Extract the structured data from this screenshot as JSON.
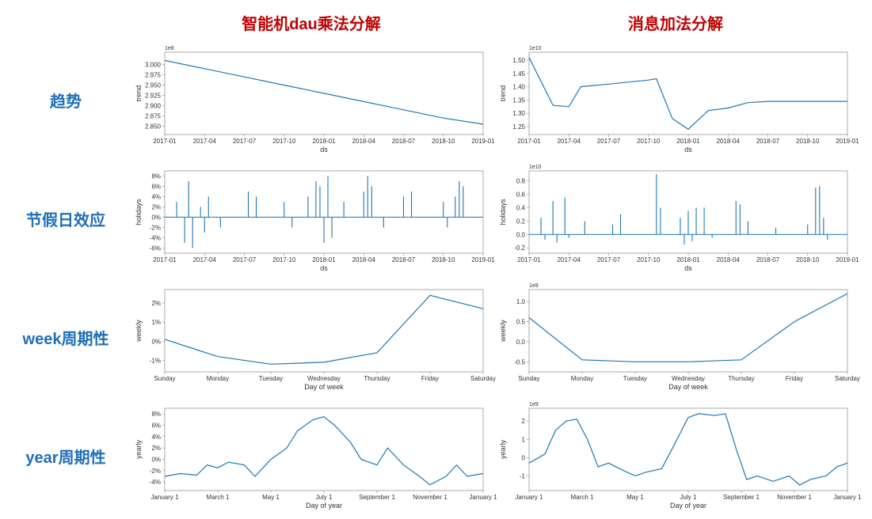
{
  "columns": {
    "left_title": "智能机dau乘法分解",
    "right_title": "消息加法分解"
  },
  "rows": {
    "r1": "趋势",
    "r2": "节假日效应",
    "r3": "week周期性",
    "r4": "year周期性"
  },
  "colors": {
    "line": "#1f77b4",
    "frame": "#888888",
    "title": "#c00000",
    "row_label": "#1f6fb8",
    "bg": "#ffffff"
  },
  "shared_dates": {
    "ticks": [
      "2017-01",
      "2017-04",
      "2017-07",
      "2017-10",
      "2018-01",
      "2018-04",
      "2018-07",
      "2018-10",
      "2019-01"
    ],
    "xlabel": "ds"
  },
  "weekly_axis": {
    "ticks": [
      "Sunday",
      "Monday",
      "Tuesday",
      "Wednesday",
      "Thursday",
      "Friday",
      "Saturday"
    ],
    "xlabel": "Day of week"
  },
  "yearly_axis": {
    "ticks": [
      "January 1",
      "March 1",
      "May 1",
      "July 1",
      "September 1",
      "November 1",
      "January 1"
    ],
    "xlabel": "Day of year"
  },
  "charts": {
    "trend_left": {
      "type": "line",
      "exp": "1e8",
      "ylabel": "trend",
      "yticks": [
        "2.850",
        "2.875",
        "2.900",
        "2.925",
        "2.950",
        "2.975",
        "3.000"
      ],
      "ylim": [
        2.83,
        3.03
      ],
      "data": [
        [
          0,
          3.01
        ],
        [
          1,
          2.99
        ],
        [
          2,
          2.97
        ],
        [
          3,
          2.95
        ],
        [
          4,
          2.93
        ],
        [
          5,
          2.91
        ],
        [
          6,
          2.89
        ],
        [
          7,
          2.87
        ],
        [
          8,
          2.855
        ]
      ]
    },
    "trend_right": {
      "type": "line",
      "exp": "1e10",
      "ylabel": "trend",
      "yticks": [
        "1.25",
        "1.30",
        "1.35",
        "1.40",
        "1.45",
        "1.50"
      ],
      "ylim": [
        1.22,
        1.53
      ],
      "data": [
        [
          0,
          1.51
        ],
        [
          0.6,
          1.33
        ],
        [
          1,
          1.325
        ],
        [
          1.3,
          1.4
        ],
        [
          2,
          1.41
        ],
        [
          3,
          1.425
        ],
        [
          3.2,
          1.43
        ],
        [
          3.6,
          1.28
        ],
        [
          4,
          1.24
        ],
        [
          4.5,
          1.31
        ],
        [
          5,
          1.32
        ],
        [
          5.5,
          1.34
        ],
        [
          6,
          1.345
        ],
        [
          7,
          1.345
        ],
        [
          8,
          1.345
        ]
      ]
    },
    "holidays_left": {
      "type": "spikes",
      "ylabel": "holidays",
      "yticks": [
        "-6%",
        "-4%",
        "-2%",
        "0%",
        "2%",
        "4%",
        "6%",
        "8%"
      ],
      "ylim": [
        -7,
        9
      ],
      "spikes": [
        [
          0.3,
          3
        ],
        [
          0.5,
          -5
        ],
        [
          0.6,
          7
        ],
        [
          0.7,
          -6
        ],
        [
          0.9,
          2
        ],
        [
          1.0,
          -3
        ],
        [
          1.1,
          4
        ],
        [
          1.4,
          -2
        ],
        [
          2.1,
          5
        ],
        [
          2.3,
          4
        ],
        [
          3.0,
          3
        ],
        [
          3.2,
          -2
        ],
        [
          3.6,
          4
        ],
        [
          3.8,
          7
        ],
        [
          3.9,
          6
        ],
        [
          4.0,
          -5
        ],
        [
          4.1,
          8
        ],
        [
          4.2,
          -4
        ],
        [
          4.5,
          3
        ],
        [
          5.0,
          5
        ],
        [
          5.1,
          8
        ],
        [
          5.2,
          6
        ],
        [
          5.5,
          -2
        ],
        [
          6.0,
          4
        ],
        [
          6.2,
          5
        ],
        [
          7.0,
          3
        ],
        [
          7.1,
          -2
        ],
        [
          7.3,
          4
        ],
        [
          7.4,
          7
        ],
        [
          7.5,
          6
        ]
      ]
    },
    "holidays_right": {
      "type": "spikes",
      "exp": "1e10",
      "ylabel": "holidays",
      "yticks": [
        "-0.2",
        "0.0",
        "0.2",
        "0.4",
        "0.6",
        "0.8"
      ],
      "ylim": [
        -0.28,
        0.95
      ],
      "spikes": [
        [
          0.3,
          0.25
        ],
        [
          0.4,
          -0.08
        ],
        [
          0.6,
          0.5
        ],
        [
          0.7,
          -0.12
        ],
        [
          0.9,
          0.55
        ],
        [
          1.0,
          -0.05
        ],
        [
          1.4,
          0.2
        ],
        [
          2.1,
          0.15
        ],
        [
          2.3,
          0.3
        ],
        [
          3.2,
          0.9
        ],
        [
          3.3,
          0.4
        ],
        [
          3.8,
          0.25
        ],
        [
          3.9,
          -0.15
        ],
        [
          4.0,
          0.35
        ],
        [
          4.1,
          -0.1
        ],
        [
          4.2,
          0.4
        ],
        [
          4.4,
          0.4
        ],
        [
          4.6,
          -0.05
        ],
        [
          5.2,
          0.5
        ],
        [
          5.3,
          0.45
        ],
        [
          5.5,
          0.2
        ],
        [
          6.2,
          0.1
        ],
        [
          7.0,
          0.15
        ],
        [
          7.2,
          0.7
        ],
        [
          7.3,
          0.72
        ],
        [
          7.4,
          0.25
        ],
        [
          7.5,
          -0.08
        ]
      ]
    },
    "weekly_left": {
      "type": "line",
      "ylabel": "weekly",
      "yticks": [
        "-1%",
        "0%",
        "1%",
        "2%"
      ],
      "ylim": [
        -1.6,
        2.7
      ],
      "data": [
        [
          0,
          0.1
        ],
        [
          1,
          -0.8
        ],
        [
          2,
          -1.2
        ],
        [
          3,
          -1.1
        ],
        [
          4,
          -0.6
        ],
        [
          5,
          2.4
        ],
        [
          6,
          1.7
        ]
      ]
    },
    "weekly_right": {
      "type": "line",
      "exp": "1e9",
      "ylabel": "weekly",
      "yticks": [
        "-0.5",
        "0.0",
        "0.5",
        "1.0"
      ],
      "ylim": [
        -0.75,
        1.3
      ],
      "data": [
        [
          0,
          0.6
        ],
        [
          1,
          -0.45
        ],
        [
          2,
          -0.5
        ],
        [
          3,
          -0.5
        ],
        [
          4,
          -0.45
        ],
        [
          5,
          0.5
        ],
        [
          6,
          1.2
        ]
      ]
    },
    "yearly_left": {
      "type": "line",
      "ylabel": "yearly",
      "yticks": [
        "-4%",
        "-2%",
        "0%",
        "2%",
        "4%",
        "6%",
        "8%"
      ],
      "ylim": [
        -5.5,
        9
      ],
      "data": [
        [
          0,
          -3
        ],
        [
          0.3,
          -2.5
        ],
        [
          0.6,
          -2.8
        ],
        [
          0.8,
          -1
        ],
        [
          1,
          -1.5
        ],
        [
          1.2,
          -0.5
        ],
        [
          1.5,
          -1
        ],
        [
          1.7,
          -3
        ],
        [
          2,
          0
        ],
        [
          2.3,
          2
        ],
        [
          2.5,
          5
        ],
        [
          2.8,
          7
        ],
        [
          3,
          7.5
        ],
        [
          3.2,
          6
        ],
        [
          3.5,
          3
        ],
        [
          3.7,
          0
        ],
        [
          4,
          -1
        ],
        [
          4.2,
          2
        ],
        [
          4.5,
          -1
        ],
        [
          4.8,
          -3
        ],
        [
          5,
          -4.5
        ],
        [
          5.3,
          -3
        ],
        [
          5.5,
          -1
        ],
        [
          5.7,
          -3
        ],
        [
          6,
          -2.5
        ]
      ]
    },
    "yearly_right": {
      "type": "line",
      "exp": "1e9",
      "ylabel": "yearly",
      "yticks": [
        "-1",
        "0",
        "1",
        "2"
      ],
      "ylim": [
        -1.8,
        2.7
      ],
      "data": [
        [
          0,
          -0.3
        ],
        [
          0.3,
          0.2
        ],
        [
          0.5,
          1.5
        ],
        [
          0.7,
          2.0
        ],
        [
          0.9,
          2.1
        ],
        [
          1.1,
          1.0
        ],
        [
          1.3,
          -0.5
        ],
        [
          1.5,
          -0.3
        ],
        [
          1.7,
          -0.6
        ],
        [
          2,
          -1.0
        ],
        [
          2.2,
          -0.8
        ],
        [
          2.5,
          -0.6
        ],
        [
          2.7,
          0.5
        ],
        [
          3,
          2.2
        ],
        [
          3.2,
          2.4
        ],
        [
          3.5,
          2.3
        ],
        [
          3.7,
          2.4
        ],
        [
          3.9,
          0.5
        ],
        [
          4.1,
          -1.2
        ],
        [
          4.3,
          -1.0
        ],
        [
          4.6,
          -1.3
        ],
        [
          4.9,
          -1.0
        ],
        [
          5.1,
          -1.5
        ],
        [
          5.3,
          -1.2
        ],
        [
          5.6,
          -1.0
        ],
        [
          5.8,
          -0.5
        ],
        [
          6,
          -0.3
        ]
      ]
    }
  },
  "font": {
    "tick_size": 8,
    "label_size": 9,
    "exp_size": 7
  }
}
